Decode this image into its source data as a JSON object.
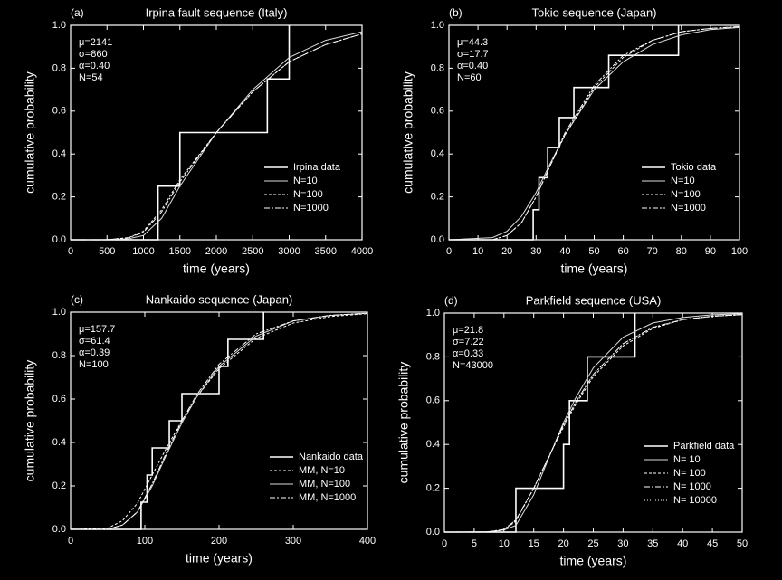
{
  "chart_data": [
    {
      "type": "line",
      "panel": "(a)",
      "title": "Irpina fault sequence (Italy)",
      "x_label": "time (years)",
      "y_label": "cumulative probability",
      "annotations": [
        "μ=2141",
        "σ=860",
        "α=0.40",
        "N=54"
      ],
      "legend": "lower right",
      "xlim": [
        0,
        4000
      ],
      "xticks": [
        0,
        500,
        1000,
        1500,
        2000,
        2500,
        3000,
        3500,
        4000
      ],
      "ylim": [
        0,
        1
      ],
      "yticks": [
        {
          "value": 0,
          "label": "0.0"
        },
        {
          "value": 0.2,
          "label": "0.2"
        },
        {
          "value": 0.4,
          "label": "0.4"
        },
        {
          "value": 0.6,
          "label": "0.6"
        },
        {
          "value": 0.8,
          "label": "0.8"
        },
        {
          "value": 1,
          "label": "1.0"
        }
      ],
      "series": [
        {
          "name": "Irpina data",
          "color": "#ffffff",
          "style": "solid",
          "x": [
            0,
            1200,
            1200,
            1500,
            1500,
            2700,
            2700,
            3000,
            3000
          ],
          "values": [
            0,
            0,
            0.25,
            0.25,
            0.5,
            0.5,
            0.75,
            0.75,
            1
          ]
        },
        {
          "name": "N=10",
          "color": "#dddddd",
          "style": "solid",
          "x": [
            0,
            500,
            800,
            1000,
            1250,
            1500,
            2000,
            2500,
            3000,
            3500,
            4000
          ],
          "values": [
            0,
            0,
            0.005,
            0.02,
            0.1,
            0.25,
            0.5,
            0.7,
            0.85,
            0.93,
            0.97
          ]
        },
        {
          "name": "N=100",
          "color": "#ffffff",
          "style": "dashed",
          "x": [
            0,
            500,
            800,
            1000,
            1250,
            1500,
            2000,
            2500,
            3000,
            3500,
            4000
          ],
          "values": [
            0,
            0,
            0.01,
            0.04,
            0.14,
            0.28,
            0.5,
            0.69,
            0.83,
            0.91,
            0.96
          ]
        },
        {
          "name": "N=1000",
          "color": "#ffffff",
          "style": "dashdot",
          "x": [
            0,
            500,
            800,
            1000,
            1250,
            1500,
            2000,
            2500,
            3000,
            3500,
            4000
          ],
          "values": [
            0,
            0,
            0.01,
            0.035,
            0.13,
            0.27,
            0.5,
            0.69,
            0.83,
            0.91,
            0.96
          ]
        }
      ]
    },
    {
      "type": "line",
      "panel": "(b)",
      "title": "Tokio sequence (Japan)",
      "x_label": "time (years)",
      "y_label": "cumulative probability",
      "annotations": [
        "μ=44.3",
        "σ=17.7",
        "α=0.40",
        "N=60"
      ],
      "legend": "lower right",
      "xlim": [
        0,
        100
      ],
      "xticks": [
        0,
        10,
        20,
        30,
        40,
        50,
        60,
        70,
        80,
        90,
        100
      ],
      "ylim": [
        0,
        1
      ],
      "yticks": [
        {
          "value": 0,
          "label": "0.0"
        },
        {
          "value": 0.2,
          "label": "0.2"
        },
        {
          "value": 0.4,
          "label": "0.4"
        },
        {
          "value": 0.6,
          "label": "0.6"
        },
        {
          "value": 0.8,
          "label": "0.8"
        },
        {
          "value": 1,
          "label": "1.0"
        }
      ],
      "series": [
        {
          "name": "Tokio data",
          "color": "#ffffff",
          "style": "solid",
          "x": [
            0,
            29,
            29,
            31,
            31,
            34,
            34,
            38,
            38,
            43,
            43,
            55,
            55,
            79,
            79
          ],
          "values": [
            0,
            0,
            0.14,
            0.14,
            0.29,
            0.29,
            0.43,
            0.43,
            0.57,
            0.57,
            0.71,
            0.71,
            0.86,
            0.86,
            1
          ]
        },
        {
          "name": "N=10",
          "color": "#dddddd",
          "style": "solid",
          "x": [
            0,
            15,
            20,
            25,
            30,
            35,
            40,
            50,
            60,
            70,
            80,
            90,
            100
          ],
          "values": [
            0,
            0.01,
            0.04,
            0.11,
            0.22,
            0.36,
            0.49,
            0.7,
            0.83,
            0.91,
            0.955,
            0.98,
            0.99
          ]
        },
        {
          "name": "N=100",
          "color": "#ffffff",
          "style": "dashed",
          "x": [
            0,
            15,
            20,
            25,
            30,
            35,
            40,
            50,
            60,
            70,
            80,
            90,
            100
          ],
          "values": [
            0,
            0,
            0.02,
            0.08,
            0.2,
            0.35,
            0.49,
            0.71,
            0.85,
            0.93,
            0.97,
            0.985,
            0.993
          ]
        },
        {
          "name": "N=1000",
          "color": "#ffffff",
          "style": "dashdot",
          "x": [
            0,
            15,
            20,
            25,
            30,
            35,
            40,
            50,
            60,
            70,
            80,
            90,
            100
          ],
          "values": [
            0,
            0,
            0.02,
            0.08,
            0.2,
            0.35,
            0.5,
            0.72,
            0.86,
            0.93,
            0.97,
            0.986,
            0.994
          ]
        }
      ]
    },
    {
      "type": "line",
      "panel": "(c)",
      "title": "Nankaido sequence (Japan)",
      "x_label": "time (years)",
      "y_label": "cumulative probability",
      "annotations": [
        "μ=157.7",
        "σ=61.4",
        "α=0.39",
        "N=100"
      ],
      "legend": "lower right",
      "xlim": [
        0,
        400
      ],
      "xticks": [
        0,
        100,
        200,
        300,
        400
      ],
      "ylim": [
        0,
        1
      ],
      "yticks": [
        {
          "value": 0,
          "label": "0.0"
        },
        {
          "value": 0.2,
          "label": "0.2"
        },
        {
          "value": 0.4,
          "label": "0.4"
        },
        {
          "value": 0.6,
          "label": "0.6"
        },
        {
          "value": 0.8,
          "label": "0.8"
        },
        {
          "value": 1,
          "label": "1.0"
        }
      ],
      "series": [
        {
          "name": "Nankaido data",
          "color": "#ffffff",
          "style": "solid",
          "x": [
            0,
            95,
            95,
            103,
            103,
            110,
            110,
            133,
            133,
            150,
            150,
            200,
            200,
            212,
            212,
            260,
            260
          ],
          "values": [
            0,
            0,
            0.125,
            0.125,
            0.25,
            0.25,
            0.375,
            0.375,
            0.5,
            0.5,
            0.625,
            0.625,
            0.75,
            0.75,
            0.875,
            0.875,
            1
          ]
        },
        {
          "name": "MM, N=10",
          "color": "#ffffff",
          "style": "dashed",
          "x": [
            0,
            50,
            70,
            90,
            110,
            130,
            150,
            170,
            200,
            250,
            300,
            350,
            400
          ],
          "values": [
            0,
            0.005,
            0.04,
            0.12,
            0.25,
            0.38,
            0.5,
            0.61,
            0.74,
            0.88,
            0.95,
            0.98,
            0.993
          ]
        },
        {
          "name": "MM, N=100",
          "color": "#dddddd",
          "style": "solid",
          "x": [
            0,
            50,
            70,
            90,
            110,
            130,
            150,
            170,
            200,
            250,
            300,
            350,
            400
          ],
          "values": [
            0,
            0,
            0.02,
            0.08,
            0.2,
            0.35,
            0.49,
            0.61,
            0.75,
            0.89,
            0.96,
            0.985,
            0.995
          ]
        },
        {
          "name": "MM, N=1000",
          "color": "#ffffff",
          "style": "dashdot",
          "x": [
            0,
            50,
            70,
            90,
            110,
            130,
            150,
            170,
            200,
            250,
            300,
            350,
            400
          ],
          "values": [
            0,
            0,
            0.02,
            0.08,
            0.21,
            0.36,
            0.5,
            0.62,
            0.76,
            0.9,
            0.96,
            0.986,
            0.995
          ]
        }
      ]
    },
    {
      "type": "line",
      "panel": "(d)",
      "title": "Parkfield sequence (USA)",
      "x_label": "time (years)",
      "y_label": "cumulative probability",
      "annotations": [
        "μ=21.8",
        "σ=7.22",
        "α=0.33",
        "N=43000"
      ],
      "legend": "lower right",
      "xlim": [
        0,
        50
      ],
      "xticks": [
        0,
        5,
        10,
        15,
        20,
        25,
        30,
        35,
        40,
        45,
        50
      ],
      "ylim": [
        0,
        1
      ],
      "yticks": [
        {
          "value": 0,
          "label": "0.0"
        },
        {
          "value": 0.2,
          "label": "0.2"
        },
        {
          "value": 0.4,
          "label": "0.4"
        },
        {
          "value": 0.6,
          "label": "0.6"
        },
        {
          "value": 0.8,
          "label": "0.8"
        },
        {
          "value": 1,
          "label": "1.0"
        }
      ],
      "series": [
        {
          "name": "Parkfield data",
          "color": "#ffffff",
          "style": "solid",
          "x": [
            0,
            12,
            12,
            20,
            20,
            21,
            21,
            24,
            24,
            32,
            32
          ],
          "values": [
            0,
            0,
            0.2,
            0.2,
            0.4,
            0.4,
            0.6,
            0.6,
            0.8,
            0.8,
            1
          ]
        },
        {
          "name": "N= 10",
          "color": "#dddddd",
          "style": "solid",
          "x": [
            0,
            8,
            10,
            12,
            15,
            18,
            20,
            22,
            25,
            30,
            35,
            40,
            45,
            50
          ],
          "values": [
            0,
            0.002,
            0.01,
            0.03,
            0.17,
            0.37,
            0.5,
            0.61,
            0.75,
            0.89,
            0.955,
            0.98,
            0.992,
            0.997
          ]
        },
        {
          "name": "N= 100",
          "color": "#ffffff",
          "style": "dashed",
          "x": [
            0,
            7,
            10,
            12,
            15,
            18,
            20,
            22,
            25,
            30,
            35,
            40,
            45,
            50
          ],
          "values": [
            0,
            0,
            0.01,
            0.05,
            0.2,
            0.37,
            0.48,
            0.58,
            0.71,
            0.85,
            0.93,
            0.97,
            0.985,
            0.993
          ]
        },
        {
          "name": "N= 1000",
          "color": "#ffffff",
          "style": "dashdot",
          "x": [
            0,
            7,
            10,
            12,
            15,
            18,
            20,
            22,
            25,
            30,
            35,
            40,
            45,
            50
          ],
          "values": [
            0,
            0,
            0.012,
            0.055,
            0.2,
            0.37,
            0.49,
            0.59,
            0.72,
            0.86,
            0.935,
            0.97,
            0.986,
            0.993
          ]
        },
        {
          "name": "N= 10000",
          "color": "#ffffff",
          "style": "dotted",
          "x": [
            0,
            7,
            10,
            12,
            15,
            18,
            20,
            22,
            25,
            30,
            35,
            40,
            45,
            50
          ],
          "values": [
            0,
            0,
            0.012,
            0.055,
            0.2,
            0.37,
            0.49,
            0.59,
            0.72,
            0.86,
            0.935,
            0.97,
            0.986,
            0.993
          ]
        }
      ]
    }
  ]
}
